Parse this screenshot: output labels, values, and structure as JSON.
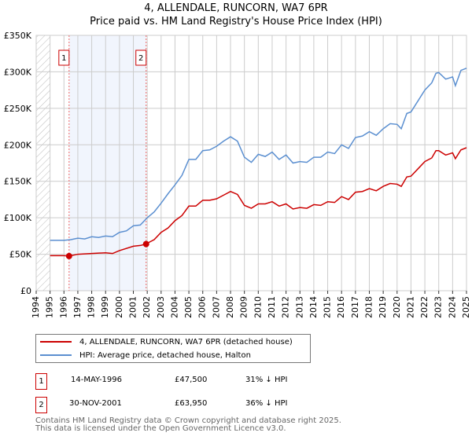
{
  "chart_data": {
    "type": "line",
    "title": "4, ALLENDALE, RUNCORN, WA7 6PR",
    "subtitle": "Price paid vs. HM Land Registry's House Price Index (HPI)",
    "xlabel": "",
    "ylabel": "",
    "xlim": [
      1994,
      2025
    ],
    "ylim": [
      0,
      350000
    ],
    "x_ticks": [
      "1994",
      "1995",
      "1996",
      "1997",
      "1998",
      "1999",
      "2000",
      "2001",
      "2002",
      "2003",
      "2004",
      "2005",
      "2006",
      "2007",
      "2008",
      "2009",
      "2010",
      "2011",
      "2012",
      "2013",
      "2014",
      "2015",
      "2016",
      "2017",
      "2018",
      "2019",
      "2020",
      "2021",
      "2022",
      "2023",
      "2024",
      "2025"
    ],
    "y_ticks": [
      {
        "v": 0,
        "label": "£0"
      },
      {
        "v": 50000,
        "label": "£50K"
      },
      {
        "v": 100000,
        "label": "£100K"
      },
      {
        "v": 150000,
        "label": "£150K"
      },
      {
        "v": 200000,
        "label": "£200K"
      },
      {
        "v": 250000,
        "label": "£250K"
      },
      {
        "v": 300000,
        "label": "£300K"
      },
      {
        "v": 350000,
        "label": "£350K"
      }
    ],
    "grid": true,
    "series": [
      {
        "name": "4, ALLENDALE, RUNCORN, WA7 6PR (detached house)",
        "color": "#cc0000",
        "x": [
          1995,
          1996,
          1996.37,
          1997,
          1998,
          1999,
          1999.5,
          2000,
          2001,
          2001.5,
          2001.92,
          2002,
          2002.5,
          2003,
          2003.5,
          2004,
          2004.5,
          2005,
          2005.5,
          2006,
          2006.5,
          2007,
          2007.5,
          2008,
          2008.5,
          2009,
          2009.5,
          2010,
          2010.5,
          2011,
          2011.5,
          2012,
          2012.5,
          2013,
          2013.5,
          2014,
          2014.5,
          2015,
          2015.5,
          2016,
          2016.5,
          2017,
          2017.5,
          2018,
          2018.5,
          2019,
          2019.5,
          2020,
          2020.3,
          2020.7,
          2021,
          2021.5,
          2022,
          2022.5,
          2022.8,
          2023,
          2023.5,
          2024,
          2024.2,
          2024.6,
          2025
        ],
        "values": [
          48,
          48,
          47.5,
          50,
          51,
          52,
          51,
          55,
          61,
          62,
          63.95,
          65,
          70,
          80,
          86,
          96,
          103,
          116,
          116,
          124,
          124,
          126,
          131,
          136,
          132,
          117,
          113,
          119,
          119,
          122,
          116,
          119,
          112,
          114,
          113,
          118,
          117,
          122,
          121,
          129,
          125,
          135,
          136,
          140,
          137,
          143,
          147,
          146,
          143,
          156,
          157,
          167,
          177,
          182,
          192,
          192,
          186,
          189,
          181,
          193,
          196
        ]
      },
      {
        "name": "HPI: Average price, detached house, Halton",
        "color": "#5b8fd0",
        "x": [
          1995,
          1996,
          1996.5,
          1997,
          1997.5,
          1998,
          1998.5,
          1999,
          1999.5,
          2000,
          2000.5,
          2001,
          2001.5,
          2002,
          2002.5,
          2003,
          2003.5,
          2004,
          2004.5,
          2005,
          2005.5,
          2006,
          2006.5,
          2007,
          2007.5,
          2008,
          2008.5,
          2009,
          2009.5,
          2010,
          2010.5,
          2011,
          2011.5,
          2012,
          2012.5,
          2013,
          2013.5,
          2014,
          2014.5,
          2015,
          2015.5,
          2016,
          2016.5,
          2017,
          2017.5,
          2018,
          2018.5,
          2019,
          2019.5,
          2020,
          2020.3,
          2020.7,
          2021,
          2021.5,
          2022,
          2022.5,
          2022.8,
          2023,
          2023.5,
          2024,
          2024.2,
          2024.6,
          2025
        ],
        "values": [
          69,
          69,
          70,
          72,
          71,
          74,
          73,
          75,
          74,
          80,
          82,
          89,
          90,
          100,
          108,
          120,
          133,
          145,
          158,
          180,
          180,
          192,
          193,
          198,
          205,
          211,
          205,
          183,
          176,
          187,
          184,
          190,
          180,
          186,
          175,
          177,
          176,
          183,
          183,
          190,
          188,
          200,
          195,
          210,
          212,
          218,
          213,
          222,
          229,
          228,
          222,
          243,
          245,
          260,
          275,
          285,
          298,
          299,
          290,
          293,
          281,
          302,
          305
        ]
      }
    ],
    "value_unit": "thousand GBP",
    "shaded_range": [
      1996.37,
      2001.92
    ],
    "annotations": [
      {
        "label": "1",
        "x": 1996.37,
        "value": 47.5
      },
      {
        "label": "2",
        "x": 2001.92,
        "value": 63.95
      }
    ],
    "legend_position": "below"
  },
  "legend": {
    "items": [
      "4, ALLENDALE, RUNCORN, WA7 6PR (detached house)",
      "HPI: Average price, detached house, Halton"
    ]
  },
  "transactions": [
    {
      "num": "1",
      "date": "14-MAY-1996",
      "price": "£47,500",
      "hpi": "31% ↓ HPI"
    },
    {
      "num": "2",
      "date": "30-NOV-2001",
      "price": "£63,950",
      "hpi": "36% ↓ HPI"
    }
  ],
  "footer": {
    "line1": "Contains HM Land Registry data © Crown copyright and database right 2025.",
    "line2": "This data is licensed under the Open Government Licence v3.0."
  }
}
